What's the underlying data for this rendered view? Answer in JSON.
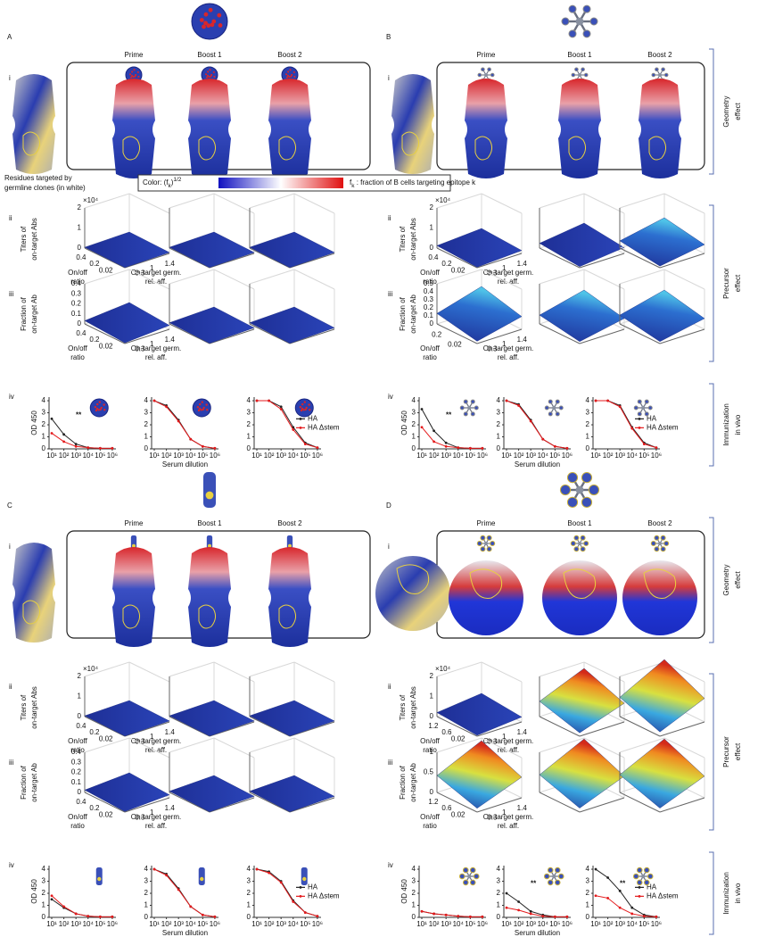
{
  "labels": {
    "titers": [
      "Titers of",
      "on-target Abs"
    ],
    "fraction": [
      "Fraction of",
      "on-target Ab"
    ],
    "ratio": [
      "On/off",
      "ratio"
    ],
    "aff": [
      "On-target germ.",
      "rel. aff."
    ],
    "exp": "×10⁴",
    "od": "OD 450",
    "dilution": "Serum dilution"
  },
  "residues": [
    "Residues targeted by",
    "germline clones (in white)"
  ],
  "colorbar": {
    "prefix": "Color: (f",
    "sub": "k",
    "close": ")",
    "sup": "1/2",
    "key": "f",
    "key_sub": "k",
    "key_text": " : fraction of B cells targeting epitope k"
  },
  "side_labels": [
    {
      "lines": [
        "Geometry",
        "effect"
      ]
    },
    {
      "lines": [
        "Precursor",
        "effect"
      ]
    },
    {
      "lines": [
        "Immunization",
        "in vivo"
      ]
    }
  ],
  "od_axes": {
    "x": [
      10,
      100,
      1000,
      10000,
      100000,
      1000000
    ],
    "xlim": [
      6,
      2000000
    ],
    "log_x": true,
    "xticks": [
      {
        "value": 10,
        "label": "10¹"
      },
      {
        "value": 100,
        "label": "10²"
      },
      {
        "value": 1000,
        "label": "10³"
      },
      {
        "value": 10000,
        "label": "10⁴"
      },
      {
        "value": 100000,
        "label": "10⁵"
      },
      {
        "value": 1000000,
        "label": "10⁶"
      }
    ],
    "ylim": [
      0,
      4.3
    ],
    "yticks": [
      0,
      1,
      2,
      3,
      4
    ]
  },
  "panels": [
    {
      "letter": "A",
      "columns": [
        "Prime",
        "Boost 1",
        "Boost 2"
      ],
      "rows": [
        "i",
        "ii",
        "iii",
        "iv"
      ],
      "titers": {
        "zticks": [
          "2",
          "1",
          "0"
        ],
        "ratio_ticks": [
          "0.4",
          "0.2",
          "0.02"
        ],
        "aff_ticks": [
          "0.3",
          "1",
          "1.4"
        ]
      },
      "fraction": {
        "zticks": [
          "0.4",
          "0.3",
          "0.2",
          "0.1",
          "0"
        ],
        "ratio_ticks": [
          "0.4",
          "0.2",
          "0.02"
        ],
        "aff_ticks": [
          "0.3",
          "1",
          "1.4"
        ]
      },
      "od": [
        {
          "series": [
            {
              "color": "#222222",
              "values": [
                2.5,
                1.2,
                0.4,
                0.1,
                0.05,
                0.05
              ]
            },
            {
              "color": "#e41a1c",
              "values": [
                1.3,
                0.6,
                0.2,
                0.1,
                0.05,
                0.05
              ]
            }
          ],
          "annotation": "**"
        },
        {
          "series": [
            {
              "color": "#222222",
              "values": [
                4,
                3.6,
                2.4,
                0.8,
                0.2,
                0.05
              ]
            },
            {
              "color": "#e41a1c",
              "values": [
                4,
                3.5,
                2.3,
                0.8,
                0.2,
                0.05
              ]
            }
          ]
        },
        {
          "series": [
            {
              "name": "HA",
              "color": "#222222",
              "values": [
                4,
                4,
                3.5,
                1.8,
                0.5,
                0.1
              ]
            },
            {
              "name": "HA Δstem",
              "color": "#e41a1c",
              "values": [
                4,
                4,
                3.3,
                1.6,
                0.4,
                0.1
              ]
            }
          ]
        }
      ]
    },
    {
      "letter": "B",
      "columns": [
        "Prime",
        "Boost 1",
        "Boost 2"
      ],
      "rows": [
        "i",
        "ii",
        "iii",
        "iv"
      ],
      "titers": {
        "zticks": [
          "2",
          "1",
          "0"
        ],
        "ratio_ticks": [
          "0.4",
          "0.2",
          "0.02"
        ],
        "aff_ticks": [
          "0.3",
          "1",
          "1.4"
        ]
      },
      "fraction": {
        "zticks": [
          "0.5",
          "0.4",
          "0.3",
          "0.2",
          "0.1",
          "0"
        ],
        "ratio_ticks": [
          "0.2",
          "0.02"
        ],
        "aff_ticks": [
          "0.3",
          "1",
          "1.4"
        ]
      },
      "od": [
        {
          "series": [
            {
              "color": "#222222",
              "values": [
                3.3,
                1.5,
                0.5,
                0.1,
                0.05,
                0.05
              ]
            },
            {
              "color": "#e41a1c",
              "values": [
                1.8,
                0.6,
                0.2,
                0.1,
                0.05,
                0.05
              ]
            }
          ],
          "annotation": "**"
        },
        {
          "series": [
            {
              "color": "#222222",
              "values": [
                4,
                3.7,
                2.4,
                0.8,
                0.2,
                0.05
              ]
            },
            {
              "color": "#e41a1c",
              "values": [
                4,
                3.6,
                2.3,
                0.8,
                0.2,
                0.05
              ]
            }
          ]
        },
        {
          "series": [
            {
              "name": "HA",
              "color": "#222222",
              "values": [
                4,
                4,
                3.6,
                1.8,
                0.5,
                0.1
              ]
            },
            {
              "name": "HA Δstem",
              "color": "#e41a1c",
              "values": [
                4,
                4,
                3.5,
                1.7,
                0.4,
                0.1
              ]
            }
          ]
        }
      ]
    },
    {
      "letter": "C",
      "columns": [
        "Prime",
        "Boost 1",
        "Boost 2"
      ],
      "rows": [
        "i",
        "ii",
        "iii",
        "iv"
      ],
      "titers": {
        "zticks": [
          "2",
          "1",
          "0"
        ],
        "ratio_ticks": [
          "0.4",
          "0.2",
          "0.02"
        ],
        "aff_ticks": [
          "0.3",
          "1",
          "1.4"
        ]
      },
      "fraction": {
        "zticks": [
          "0.4",
          "0.3",
          "0.2",
          "0.1",
          "0"
        ],
        "ratio_ticks": [
          "0.4",
          "0.2",
          "0.02"
        ],
        "aff_ticks": [
          "0.3",
          "1",
          "1.4"
        ]
      },
      "od": [
        {
          "series": [
            {
              "color": "#222222",
              "values": [
                1.5,
                0.8,
                0.3,
                0.1,
                0.05,
                0.05
              ]
            },
            {
              "color": "#e41a1c",
              "values": [
                1.8,
                0.9,
                0.3,
                0.1,
                0.05,
                0.05
              ]
            }
          ]
        },
        {
          "series": [
            {
              "color": "#222222",
              "values": [
                4,
                3.6,
                2.4,
                0.9,
                0.2,
                0.05
              ]
            },
            {
              "color": "#e41a1c",
              "values": [
                4,
                3.5,
                2.3,
                0.9,
                0.2,
                0.05
              ]
            }
          ]
        },
        {
          "series": [
            {
              "name": "HA",
              "color": "#222222",
              "values": [
                4,
                3.8,
                3,
                1.4,
                0.4,
                0.1
              ]
            },
            {
              "name": "HA Δstem",
              "color": "#e41a1c",
              "values": [
                4,
                3.7,
                2.9,
                1.3,
                0.4,
                0.1
              ]
            }
          ]
        }
      ]
    },
    {
      "letter": "D",
      "columns": [
        "Prime",
        "Boost 1",
        "Boost 2"
      ],
      "rows": [
        "i",
        "ii",
        "iii",
        "iv"
      ],
      "titers": {
        "zticks": [
          "2",
          "1",
          "0"
        ],
        "ratio_ticks": [
          "1.2",
          "0.6",
          "0.02"
        ],
        "aff_ticks": [
          "0.3",
          "1",
          "1.4"
        ]
      },
      "fraction": {
        "zticks": [
          "1",
          "0.5",
          "0"
        ],
        "ratio_ticks": [
          "1.2",
          "0.6",
          "0.02"
        ],
        "aff_ticks": [
          "0.3",
          "1",
          "1.4"
        ]
      },
      "od": [
        {
          "series": [
            {
              "color": "#222222",
              "values": [
                0.5,
                0.3,
                0.2,
                0.1,
                0.05,
                0.05
              ]
            },
            {
              "color": "#e41a1c",
              "values": [
                0.5,
                0.3,
                0.2,
                0.1,
                0.05,
                0.05
              ]
            }
          ]
        },
        {
          "series": [
            {
              "color": "#222222",
              "values": [
                2,
                1.3,
                0.5,
                0.2,
                0.05,
                0.05
              ]
            },
            {
              "color": "#e41a1c",
              "values": [
                0.8,
                0.6,
                0.3,
                0.1,
                0.05,
                0.05
              ]
            }
          ],
          "annotation": "**"
        },
        {
          "series": [
            {
              "name": "HA",
              "color": "#222222",
              "values": [
                4,
                3.3,
                2.2,
                0.8,
                0.2,
                0.05
              ]
            },
            {
              "name": "HA Δstem",
              "color": "#e41a1c",
              "values": [
                1.8,
                1.6,
                0.8,
                0.3,
                0.1,
                0.05
              ]
            }
          ],
          "annotation": "**"
        }
      ]
    }
  ]
}
